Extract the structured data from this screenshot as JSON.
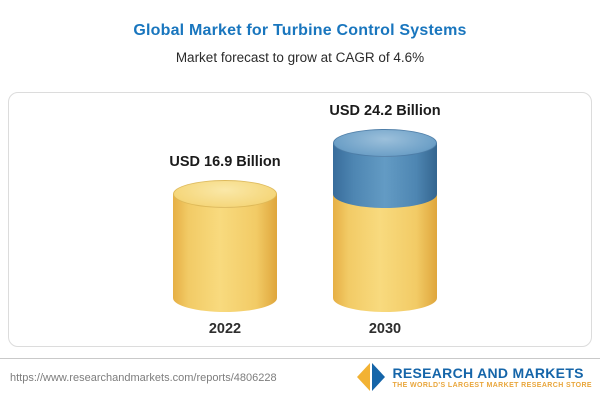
{
  "header": {
    "title": "Global Market for Turbine Control Systems",
    "subtitle": "Market forecast to grow at CAGR of 4.6%"
  },
  "chart_data": {
    "type": "bar",
    "variant": "3d-cylinder",
    "categories": [
      "2022",
      "2030"
    ],
    "values": [
      16.9,
      24.2
    ],
    "value_labels": [
      "USD 16.9 Billion",
      "USD 24.2 Billion"
    ],
    "unit": "USD Billion",
    "cagr_percent": 4.6,
    "ylim": [
      0,
      25
    ],
    "legend_position": "none",
    "grid": false,
    "colors": {
      "base_gold": "#F2CB66",
      "growth_blue": "#4E86B2",
      "title_blue": "#1976BE"
    },
    "note": "2030 cylinder shows the 2022 base value in gold with the growth portion stacked in blue"
  },
  "footer": {
    "url": "https://www.researchandmarkets.com/reports/4806228",
    "logo_name": "RESEARCH AND MARKETS",
    "logo_tagline": "THE WORLD'S LARGEST MARKET RESEARCH STORE"
  }
}
